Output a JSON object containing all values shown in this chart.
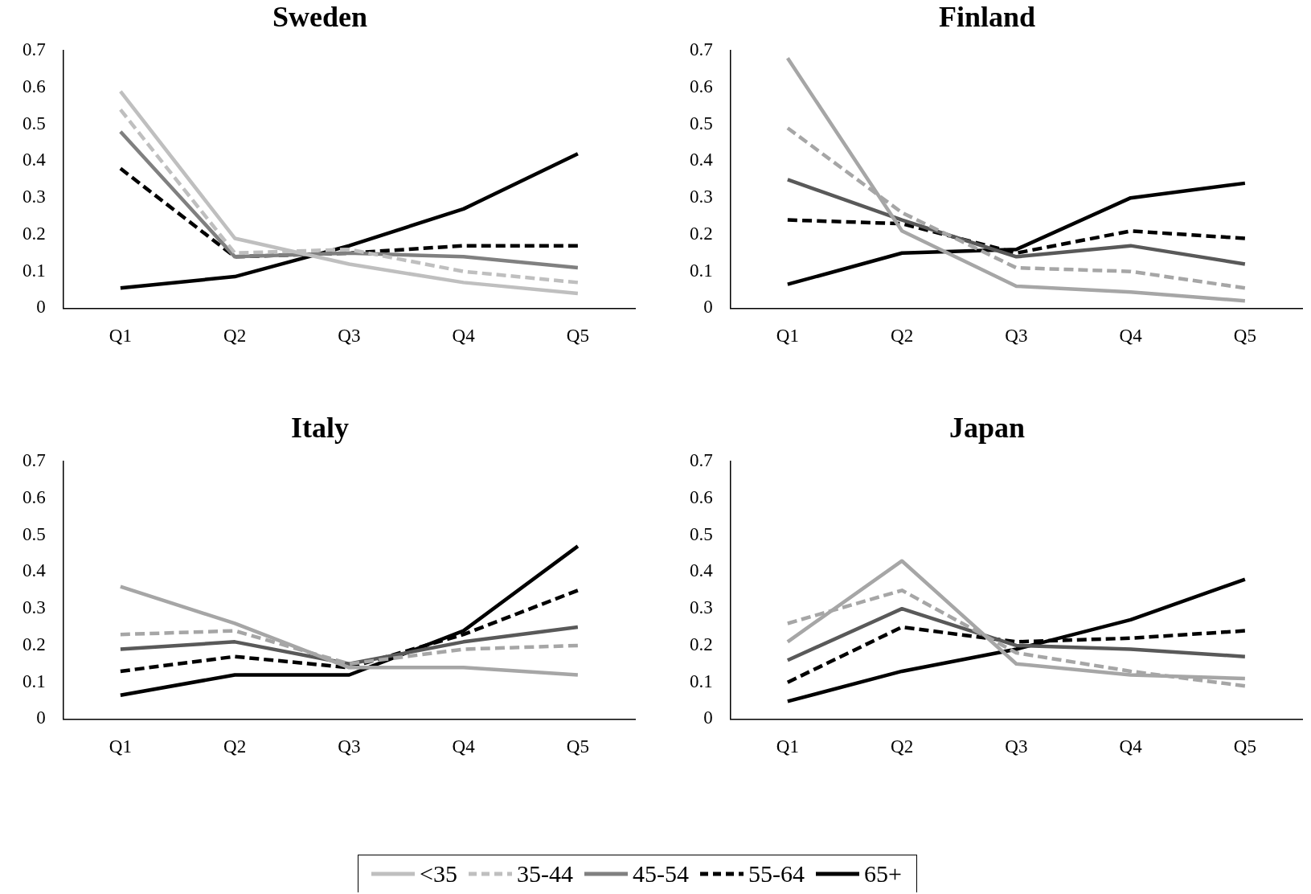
{
  "chart_data": [
    {
      "type": "line",
      "title": "Sweden",
      "categories": [
        "Q1",
        "Q2",
        "Q3",
        "Q4",
        "Q5"
      ],
      "ylim": [
        0,
        0.7
      ],
      "yticks": [
        0,
        0.1,
        0.2,
        0.3,
        0.4,
        0.5,
        0.6,
        0.7
      ],
      "grid": false,
      "marker": "none",
      "legend": "bottom",
      "series": [
        {
          "name": "<35",
          "color": "#bfbfbf",
          "line_style": "solid",
          "values": [
            0.59,
            0.19,
            0.12,
            0.07,
            0.04
          ]
        },
        {
          "name": "35-44",
          "color": "#bfbfbf",
          "line_style": "dashed",
          "values": [
            0.54,
            0.15,
            0.16,
            0.1,
            0.07
          ]
        },
        {
          "name": "45-54",
          "color": "#808080",
          "line_style": "solid",
          "values": [
            0.48,
            0.14,
            0.15,
            0.14,
            0.11
          ]
        },
        {
          "name": "55-64",
          "color": "#000000",
          "line_style": "dashed",
          "values": [
            0.38,
            0.14,
            0.15,
            0.17,
            0.17
          ]
        },
        {
          "name": "65+",
          "color": "#000000",
          "line_style": "solid",
          "values": [
            0.055,
            0.086,
            0.17,
            0.27,
            0.42
          ]
        }
      ]
    },
    {
      "type": "line",
      "title": "Finland",
      "categories": [
        "Q1",
        "Q2",
        "Q3",
        "Q4",
        "Q5"
      ],
      "ylim": [
        0,
        0.7
      ],
      "yticks": [
        0,
        0.1,
        0.2,
        0.3,
        0.4,
        0.5,
        0.6,
        0.7
      ],
      "grid": false,
      "marker": "none",
      "series": [
        {
          "color": "#a6a6a6",
          "line_style": "solid",
          "values": [
            0.68,
            0.21,
            0.06,
            0.044,
            0.02
          ]
        },
        {
          "color": "#a6a6a6",
          "line_style": "dashed",
          "values": [
            0.49,
            0.26,
            0.11,
            0.1,
            0.055
          ]
        },
        {
          "color": "#595959",
          "line_style": "solid",
          "values": [
            0.35,
            0.24,
            0.14,
            0.17,
            0.12
          ]
        },
        {
          "color": "#000000",
          "line_style": "dashed",
          "values": [
            0.24,
            0.23,
            0.15,
            0.21,
            0.19
          ]
        },
        {
          "color": "#000000",
          "line_style": "solid",
          "values": [
            0.065,
            0.15,
            0.16,
            0.3,
            0.34
          ]
        }
      ]
    },
    {
      "type": "line",
      "title": "Italy",
      "categories": [
        "Q1",
        "Q2",
        "Q3",
        "Q4",
        "Q5"
      ],
      "ylim": [
        0,
        0.7
      ],
      "yticks": [
        0,
        0.1,
        0.2,
        0.3,
        0.4,
        0.5,
        0.6,
        0.7
      ],
      "grid": false,
      "marker": "none",
      "series": [
        {
          "color": "#a6a6a6",
          "line_style": "solid",
          "values": [
            0.36,
            0.26,
            0.14,
            0.14,
            0.12
          ]
        },
        {
          "color": "#a6a6a6",
          "line_style": "dashed",
          "values": [
            0.23,
            0.24,
            0.15,
            0.19,
            0.2
          ]
        },
        {
          "color": "#595959",
          "line_style": "solid",
          "values": [
            0.19,
            0.21,
            0.15,
            0.21,
            0.25
          ]
        },
        {
          "color": "#000000",
          "line_style": "dashed",
          "values": [
            0.13,
            0.17,
            0.14,
            0.23,
            0.35
          ]
        },
        {
          "color": "#000000",
          "line_style": "solid",
          "values": [
            0.065,
            0.12,
            0.12,
            0.24,
            0.47
          ]
        }
      ]
    },
    {
      "type": "line",
      "title": "Japan",
      "categories": [
        "Q1",
        "Q2",
        "Q3",
        "Q4",
        "Q5"
      ],
      "ylim": [
        0,
        0.7
      ],
      "yticks": [
        0,
        0.1,
        0.2,
        0.3,
        0.4,
        0.5,
        0.6,
        0.7
      ],
      "grid": false,
      "marker": "none",
      "series": [
        {
          "color": "#a6a6a6",
          "line_style": "solid",
          "values": [
            0.21,
            0.43,
            0.15,
            0.12,
            0.11
          ]
        },
        {
          "color": "#a6a6a6",
          "line_style": "dashed",
          "values": [
            0.26,
            0.35,
            0.18,
            0.13,
            0.09
          ]
        },
        {
          "color": "#595959",
          "line_style": "solid",
          "values": [
            0.16,
            0.3,
            0.2,
            0.19,
            0.17
          ]
        },
        {
          "color": "#000000",
          "line_style": "dashed",
          "values": [
            0.1,
            0.25,
            0.21,
            0.22,
            0.24
          ]
        },
        {
          "color": "#000000",
          "line_style": "solid",
          "values": [
            0.048,
            0.13,
            0.19,
            0.27,
            0.38
          ]
        }
      ]
    }
  ]
}
